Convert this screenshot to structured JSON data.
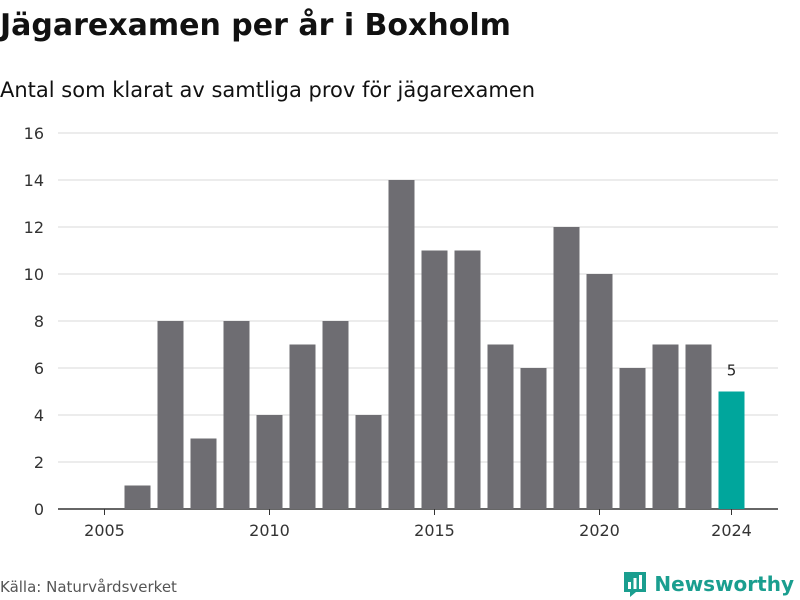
{
  "title": "Jägarexamen per år i Boxholm",
  "subtitle": "Antal som klarat av samtliga prov för jägarexamen",
  "source": "Källa: Naturvårdsverket",
  "brand": {
    "name": "Newsworthy",
    "icon": "bar-chart-logo-icon"
  },
  "colors": {
    "bar": "#6e6d72",
    "highlight": "#00a69c",
    "brand": "#1a9e8f",
    "grid": "#d9d9d9"
  },
  "chart_data": {
    "type": "bar",
    "categories": [
      "2005",
      "2006",
      "2007",
      "2008",
      "2009",
      "2010",
      "2011",
      "2012",
      "2013",
      "2014",
      "2015",
      "2016",
      "2017",
      "2018",
      "2019",
      "2020",
      "2021",
      "2022",
      "2023",
      "2024"
    ],
    "values": [
      0,
      1,
      8,
      3,
      8,
      4,
      7,
      8,
      4,
      14,
      11,
      11,
      7,
      6,
      12,
      10,
      6,
      7,
      7,
      5
    ],
    "highlight_category": "2024",
    "data_labels": [
      {
        "category": "2024",
        "text": "5"
      }
    ],
    "x_tick_labels": [
      "2005",
      "2010",
      "2015",
      "2020",
      "2024"
    ],
    "y_ticks": [
      "0",
      "2",
      "4",
      "6",
      "8",
      "10",
      "12",
      "14",
      "16"
    ],
    "ylim": [
      0,
      16
    ],
    "grid": true,
    "legend": "none"
  }
}
